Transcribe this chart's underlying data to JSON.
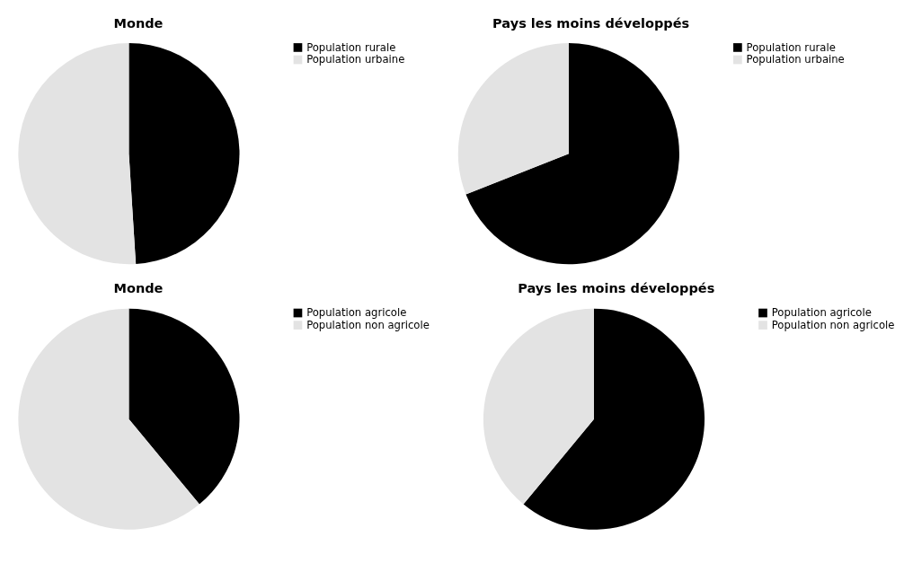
{
  "chart_data": [
    {
      "type": "pie",
      "title": "Monde",
      "categories": [
        "Population rurale",
        "Population urbaine"
      ],
      "values": [
        49,
        51
      ],
      "colors": [
        "#000000",
        "#e3e3e3"
      ],
      "legend": "right"
    },
    {
      "type": "pie",
      "title": "Pays les moins développés",
      "categories": [
        "Population rurale",
        "Population urbaine"
      ],
      "values": [
        69,
        31
      ],
      "colors": [
        "#000000",
        "#e3e3e3"
      ],
      "legend": "right"
    },
    {
      "type": "pie",
      "title": "Monde",
      "categories": [
        "Population agricole",
        "Population non agricole"
      ],
      "values": [
        39,
        61
      ],
      "colors": [
        "#000000",
        "#e3e3e3"
      ],
      "legend": "right"
    },
    {
      "type": "pie",
      "title": "Pays les moins développés",
      "categories": [
        "Population agricole",
        "Population non agricole"
      ],
      "values": [
        61,
        39
      ],
      "colors": [
        "#000000",
        "#e3e3e3"
      ],
      "legend": "right"
    }
  ]
}
